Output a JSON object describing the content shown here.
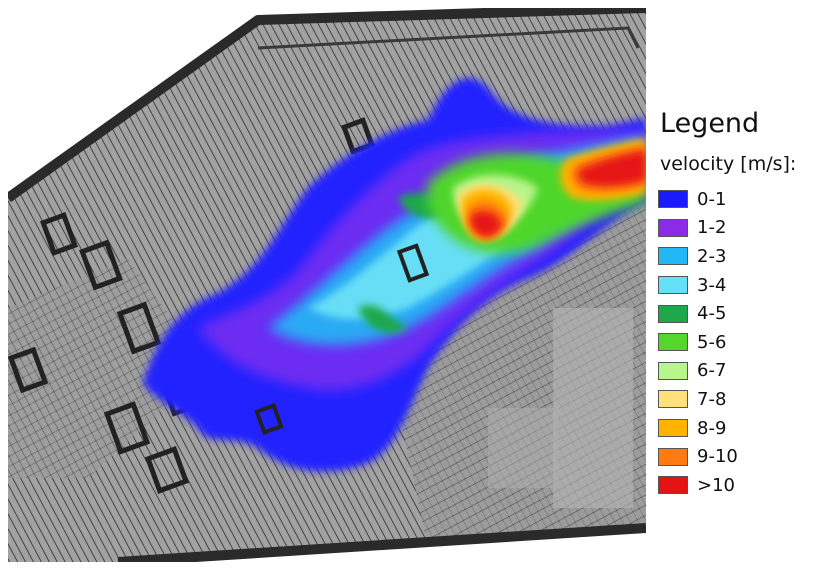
{
  "legend": {
    "title": "Legend",
    "subtitle": "velocity [m/s]:",
    "items": [
      {
        "label": "0-1",
        "color": "#1a1aff"
      },
      {
        "label": "1-2",
        "color": "#8a2be8"
      },
      {
        "label": "2-3",
        "color": "#22b8f5"
      },
      {
        "label": "3-4",
        "color": "#66e0f7"
      },
      {
        "label": "4-5",
        "color": "#1fa84a"
      },
      {
        "label": "5-6",
        "color": "#55d62a"
      },
      {
        "label": "6-7",
        "color": "#b8f58a"
      },
      {
        "label": "7-8",
        "color": "#ffe07a"
      },
      {
        "label": "8-9",
        "color": "#ffb300"
      },
      {
        "label": "9-10",
        "color": "#ff7a10"
      },
      {
        "label": ">10",
        "color": "#e51414"
      }
    ]
  },
  "map": {
    "background_color": "#8e8e8e",
    "terrain_color": "#9b9b9b",
    "contour_color": "#2b2b2b",
    "outside_color": "#ffffff"
  }
}
